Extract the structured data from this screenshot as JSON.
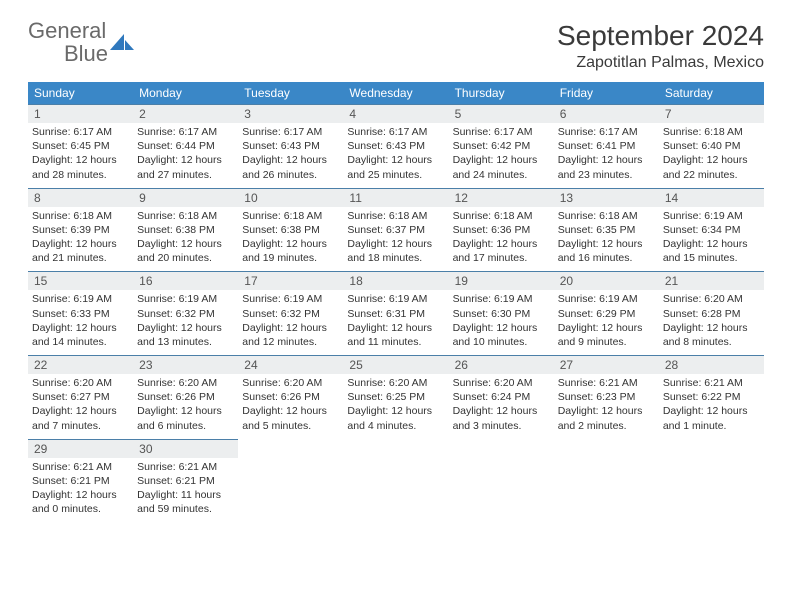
{
  "logo": {
    "text_a": "General",
    "text_b": "Blue",
    "icon_color": "#2f78bd"
  },
  "title": "September 2024",
  "location": "Zapotitlan Palmas, Mexico",
  "colors": {
    "header_bg": "#3a87c7",
    "header_fg": "#ffffff",
    "daynum_bg": "#eceeef",
    "row_border": "#4b7fa8",
    "text": "#333333",
    "title_text": "#3a3a3a",
    "logo_gray": "#6a6a6a",
    "logo_blue": "#3a7fc4"
  },
  "daysOfWeek": [
    "Sunday",
    "Monday",
    "Tuesday",
    "Wednesday",
    "Thursday",
    "Friday",
    "Saturday"
  ],
  "grid": {
    "cols": 7,
    "rows": 5
  },
  "days": [
    {
      "n": 1,
      "sr": "6:17 AM",
      "ss": "6:45 PM",
      "dl": "12 hours and 28 minutes."
    },
    {
      "n": 2,
      "sr": "6:17 AM",
      "ss": "6:44 PM",
      "dl": "12 hours and 27 minutes."
    },
    {
      "n": 3,
      "sr": "6:17 AM",
      "ss": "6:43 PM",
      "dl": "12 hours and 26 minutes."
    },
    {
      "n": 4,
      "sr": "6:17 AM",
      "ss": "6:43 PM",
      "dl": "12 hours and 25 minutes."
    },
    {
      "n": 5,
      "sr": "6:17 AM",
      "ss": "6:42 PM",
      "dl": "12 hours and 24 minutes."
    },
    {
      "n": 6,
      "sr": "6:17 AM",
      "ss": "6:41 PM",
      "dl": "12 hours and 23 minutes."
    },
    {
      "n": 7,
      "sr": "6:18 AM",
      "ss": "6:40 PM",
      "dl": "12 hours and 22 minutes."
    },
    {
      "n": 8,
      "sr": "6:18 AM",
      "ss": "6:39 PM",
      "dl": "12 hours and 21 minutes."
    },
    {
      "n": 9,
      "sr": "6:18 AM",
      "ss": "6:38 PM",
      "dl": "12 hours and 20 minutes."
    },
    {
      "n": 10,
      "sr": "6:18 AM",
      "ss": "6:38 PM",
      "dl": "12 hours and 19 minutes."
    },
    {
      "n": 11,
      "sr": "6:18 AM",
      "ss": "6:37 PM",
      "dl": "12 hours and 18 minutes."
    },
    {
      "n": 12,
      "sr": "6:18 AM",
      "ss": "6:36 PM",
      "dl": "12 hours and 17 minutes."
    },
    {
      "n": 13,
      "sr": "6:18 AM",
      "ss": "6:35 PM",
      "dl": "12 hours and 16 minutes."
    },
    {
      "n": 14,
      "sr": "6:19 AM",
      "ss": "6:34 PM",
      "dl": "12 hours and 15 minutes."
    },
    {
      "n": 15,
      "sr": "6:19 AM",
      "ss": "6:33 PM",
      "dl": "12 hours and 14 minutes."
    },
    {
      "n": 16,
      "sr": "6:19 AM",
      "ss": "6:32 PM",
      "dl": "12 hours and 13 minutes."
    },
    {
      "n": 17,
      "sr": "6:19 AM",
      "ss": "6:32 PM",
      "dl": "12 hours and 12 minutes."
    },
    {
      "n": 18,
      "sr": "6:19 AM",
      "ss": "6:31 PM",
      "dl": "12 hours and 11 minutes."
    },
    {
      "n": 19,
      "sr": "6:19 AM",
      "ss": "6:30 PM",
      "dl": "12 hours and 10 minutes."
    },
    {
      "n": 20,
      "sr": "6:19 AM",
      "ss": "6:29 PM",
      "dl": "12 hours and 9 minutes."
    },
    {
      "n": 21,
      "sr": "6:20 AM",
      "ss": "6:28 PM",
      "dl": "12 hours and 8 minutes."
    },
    {
      "n": 22,
      "sr": "6:20 AM",
      "ss": "6:27 PM",
      "dl": "12 hours and 7 minutes."
    },
    {
      "n": 23,
      "sr": "6:20 AM",
      "ss": "6:26 PM",
      "dl": "12 hours and 6 minutes."
    },
    {
      "n": 24,
      "sr": "6:20 AM",
      "ss": "6:26 PM",
      "dl": "12 hours and 5 minutes."
    },
    {
      "n": 25,
      "sr": "6:20 AM",
      "ss": "6:25 PM",
      "dl": "12 hours and 4 minutes."
    },
    {
      "n": 26,
      "sr": "6:20 AM",
      "ss": "6:24 PM",
      "dl": "12 hours and 3 minutes."
    },
    {
      "n": 27,
      "sr": "6:21 AM",
      "ss": "6:23 PM",
      "dl": "12 hours and 2 minutes."
    },
    {
      "n": 28,
      "sr": "6:21 AM",
      "ss": "6:22 PM",
      "dl": "12 hours and 1 minute."
    },
    {
      "n": 29,
      "sr": "6:21 AM",
      "ss": "6:21 PM",
      "dl": "12 hours and 0 minutes."
    },
    {
      "n": 30,
      "sr": "6:21 AM",
      "ss": "6:21 PM",
      "dl": "11 hours and 59 minutes."
    }
  ],
  "labels": {
    "sunrise": "Sunrise:",
    "sunset": "Sunset:",
    "daylight": "Daylight:"
  }
}
